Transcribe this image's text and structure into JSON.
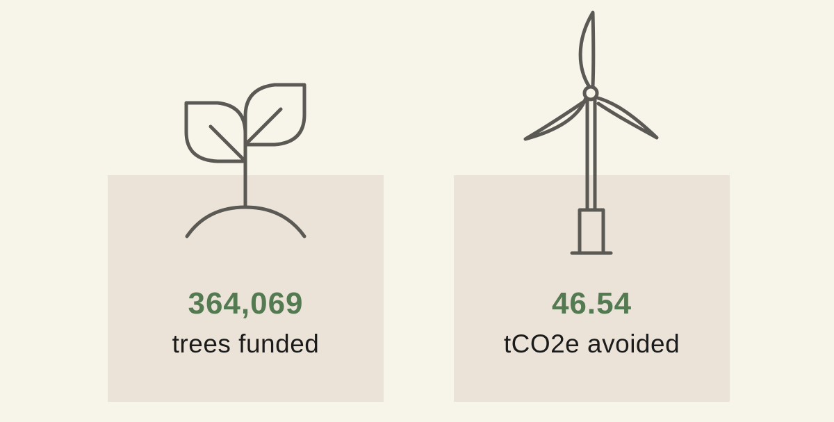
{
  "colors": {
    "background": "#f7f4ea",
    "card": "#ebe3d8",
    "accent": "#547a51",
    "icon_stroke": "#5b5954",
    "text": "#1b1b1b"
  },
  "stats": [
    {
      "value": "364,069",
      "label": "trees funded",
      "icon": "sprout-icon"
    },
    {
      "value": "46.54",
      "label": "tCO2e avoided",
      "icon": "wind-turbine-icon"
    }
  ]
}
